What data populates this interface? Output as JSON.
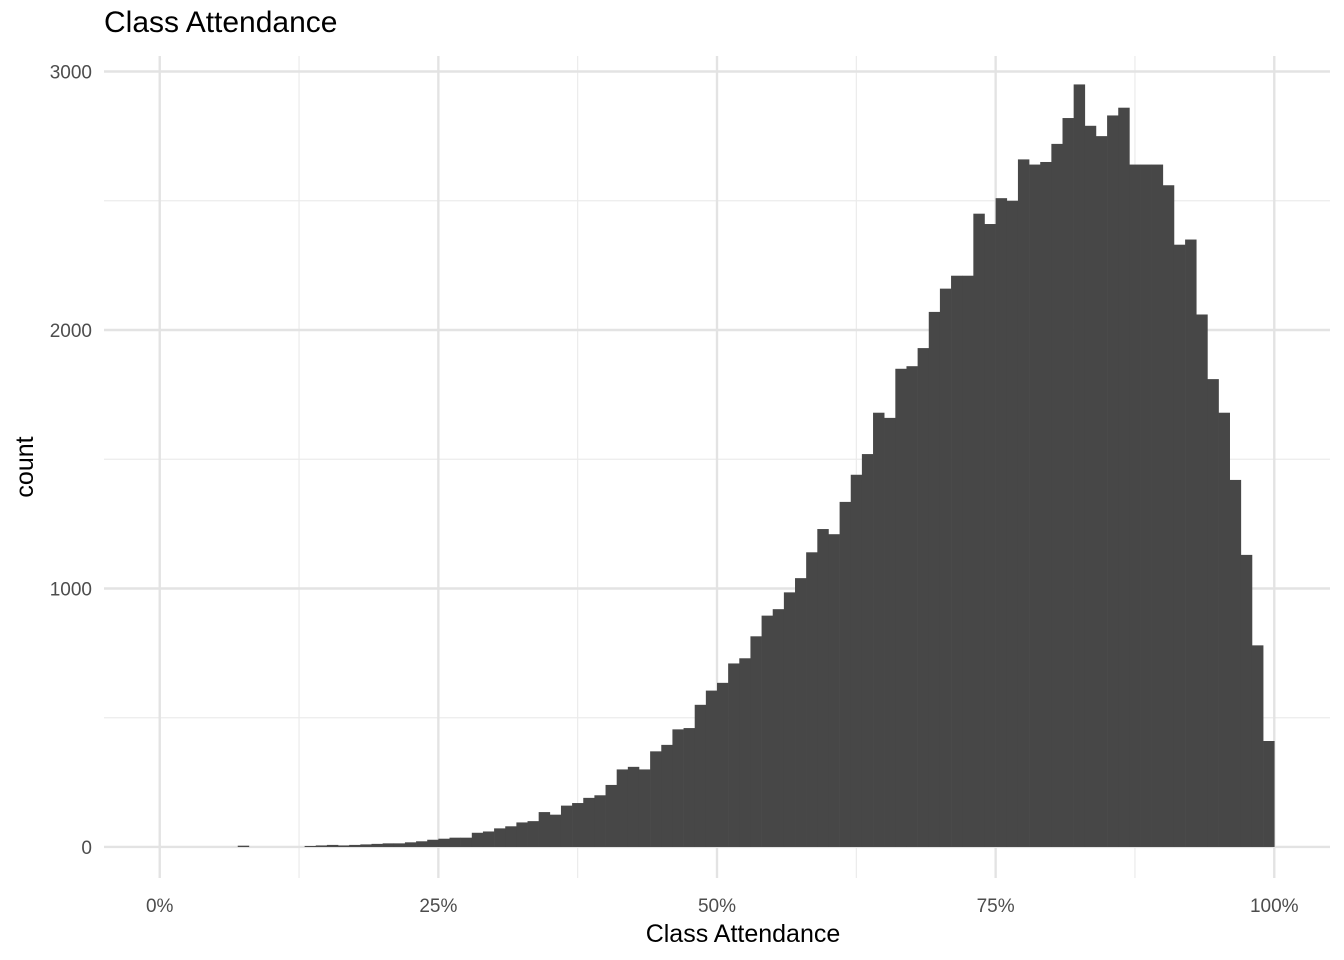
{
  "chart_data": {
    "type": "bar",
    "title": "Class Attendance",
    "xlabel": "Class Attendance",
    "ylabel": "count",
    "x_ticks": [
      "0%",
      "25%",
      "50%",
      "75%",
      "100%"
    ],
    "y_ticks": [
      "0",
      "1000",
      "2000",
      "3000"
    ],
    "xlim": [
      -0.05,
      1.05
    ],
    "ylim": [
      -120,
      3060
    ],
    "grid": true,
    "bar_color": "#474747",
    "bin_width": 0.01,
    "bin_range": [
      0.0,
      0.99
    ],
    "counts": [
      0,
      0,
      0,
      0,
      0,
      0,
      0,
      5,
      0,
      0,
      0,
      0,
      0,
      4,
      6,
      8,
      6,
      8,
      10,
      12,
      14,
      14,
      18,
      22,
      28,
      32,
      36,
      36,
      55,
      60,
      72,
      80,
      95,
      100,
      135,
      125,
      160,
      170,
      190,
      200,
      240,
      300,
      310,
      300,
      370,
      395,
      455,
      460,
      550,
      605,
      635,
      710,
      730,
      815,
      895,
      920,
      985,
      1040,
      1140,
      1230,
      1210,
      1335,
      1440,
      1520,
      1680,
      1660,
      1850,
      1860,
      1930,
      2070,
      2160,
      2210,
      2210,
      2450,
      2410,
      2510,
      2500,
      2660,
      2640,
      2650,
      2720,
      2820,
      2950,
      2790,
      2750,
      2830,
      2860,
      2640,
      2640,
      2640,
      2560,
      2330,
      2350,
      2060,
      1810,
      1680,
      1420,
      1130,
      780,
      410
    ]
  }
}
